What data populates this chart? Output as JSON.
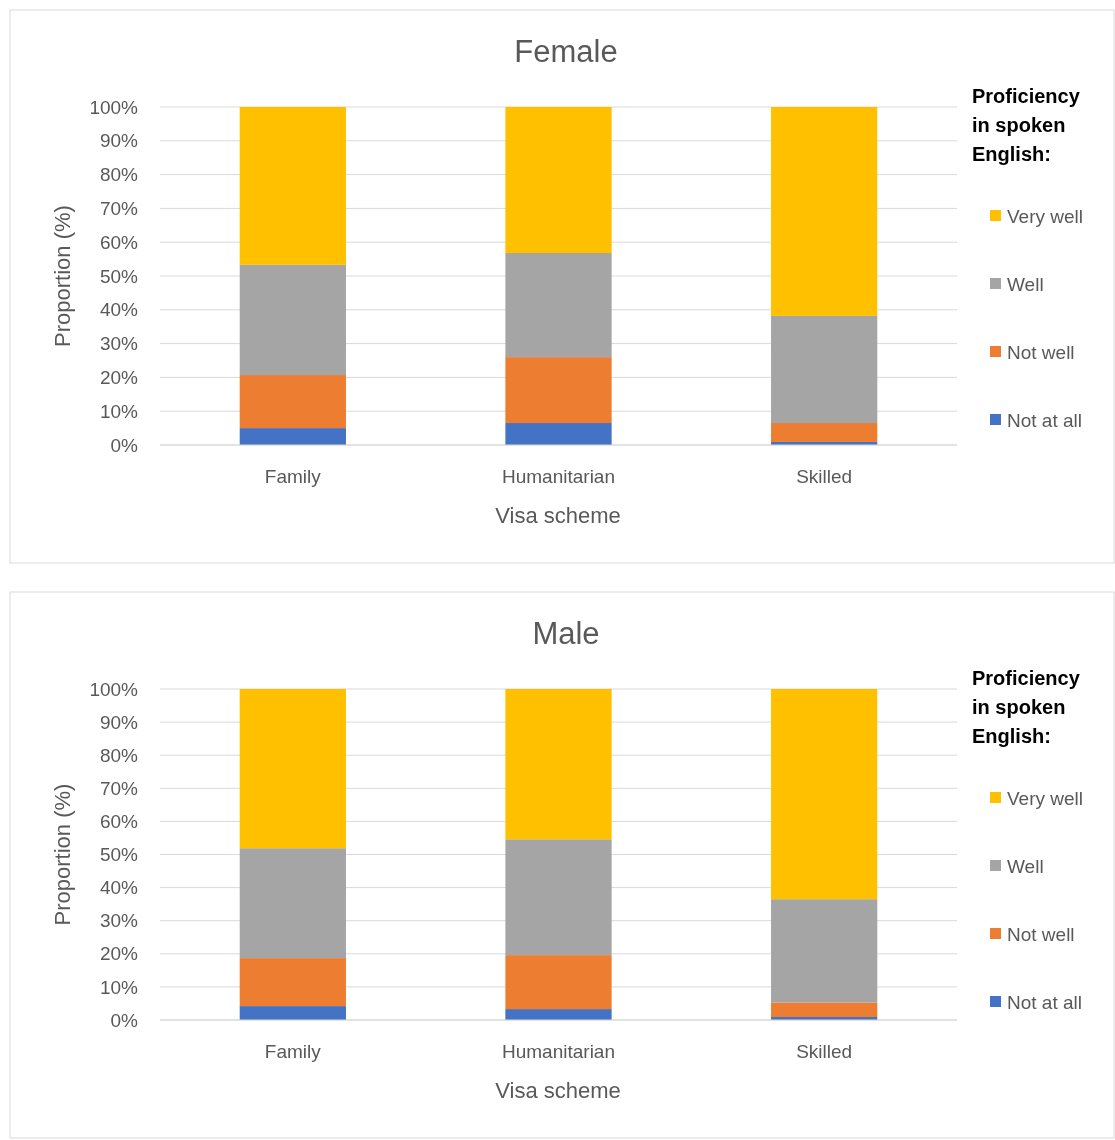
{
  "chart_data": [
    {
      "type": "bar",
      "title": "Female",
      "xlabel": "Visa scheme",
      "ylabel": "Proportion (%)",
      "legend_title": "Proficiency in spoken English:",
      "categories": [
        "Family",
        "Humanitarian",
        "Skilled"
      ],
      "stacked": true,
      "ylim": [
        0,
        100
      ],
      "yticks": [
        {
          "value": 0,
          "label": "0%"
        },
        {
          "value": 10,
          "label": "10%"
        },
        {
          "value": 20,
          "label": "20%"
        },
        {
          "value": 30,
          "label": "30%"
        },
        {
          "value": 40,
          "label": "40%"
        },
        {
          "value": 50,
          "label": "50%"
        },
        {
          "value": 60,
          "label": "60%"
        },
        {
          "value": 70,
          "label": "70%"
        },
        {
          "value": 80,
          "label": "80%"
        },
        {
          "value": 90,
          "label": "90%"
        },
        {
          "value": 100,
          "label": "100%"
        }
      ],
      "grid": "y",
      "legend": "right",
      "series": [
        {
          "name": "Not at all",
          "color": "#4472c4",
          "values": [
            5.0,
            6.5,
            0.9
          ]
        },
        {
          "name": "Not well",
          "color": "#ed7d31",
          "values": [
            15.7,
            19.5,
            5.6
          ]
        },
        {
          "name": "Well",
          "color": "#a5a5a5",
          "values": [
            32.6,
            30.8,
            31.7
          ]
        },
        {
          "name": "Very well",
          "color": "#ffc000",
          "values": [
            46.7,
            43.2,
            61.8
          ]
        }
      ]
    },
    {
      "type": "bar",
      "title": "Male",
      "xlabel": "Visa scheme",
      "ylabel": "Proportion (%)",
      "legend_title": "Proficiency in spoken English:",
      "categories": [
        "Family",
        "Humanitarian",
        "Skilled"
      ],
      "stacked": true,
      "ylim": [
        0,
        100
      ],
      "yticks": [
        {
          "value": 0,
          "label": "0%"
        },
        {
          "value": 10,
          "label": "10%"
        },
        {
          "value": 20,
          "label": "20%"
        },
        {
          "value": 30,
          "label": "30%"
        },
        {
          "value": 40,
          "label": "40%"
        },
        {
          "value": 50,
          "label": "50%"
        },
        {
          "value": 60,
          "label": "60%"
        },
        {
          "value": 70,
          "label": "70%"
        },
        {
          "value": 80,
          "label": "80%"
        },
        {
          "value": 90,
          "label": "90%"
        },
        {
          "value": 100,
          "label": "100%"
        }
      ],
      "grid": "y",
      "legend": "right",
      "series": [
        {
          "name": "Not at all",
          "color": "#4472c4",
          "values": [
            4.2,
            3.3,
            0.9
          ]
        },
        {
          "name": "Not well",
          "color": "#ed7d31",
          "values": [
            14.5,
            16.3,
            4.4
          ]
        },
        {
          "name": "Well",
          "color": "#a5a5a5",
          "values": [
            33.2,
            35.0,
            31.2
          ]
        },
        {
          "name": "Very well",
          "color": "#ffc000",
          "values": [
            48.1,
            45.4,
            63.5
          ]
        }
      ]
    }
  ]
}
